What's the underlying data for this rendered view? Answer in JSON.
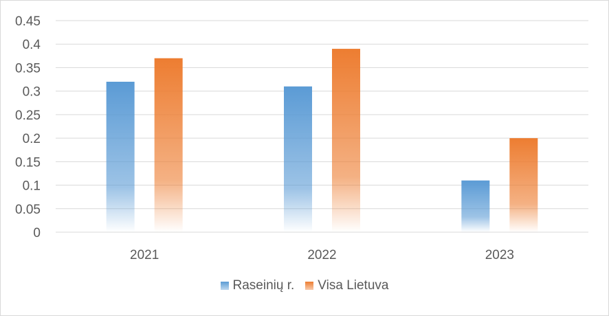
{
  "chart_data": {
    "type": "bar",
    "categories": [
      "2021",
      "2022",
      "2023"
    ],
    "series": [
      {
        "name": "Raseinių r.",
        "values": [
          0.32,
          0.31,
          0.11
        ],
        "color": "#5b9bd5"
      },
      {
        "name": "Visa Lietuva",
        "values": [
          0.37,
          0.39,
          0.2
        ],
        "color": "#ed7d31"
      }
    ],
    "yticks": [
      "0",
      "0.05",
      "0.1",
      "0.15",
      "0.2",
      "0.25",
      "0.3",
      "0.35",
      "0.4",
      "0.45"
    ],
    "ylim": [
      0,
      0.45
    ],
    "grid": true,
    "legend_position": "bottom",
    "title": "",
    "xlabel": "",
    "ylabel": ""
  }
}
